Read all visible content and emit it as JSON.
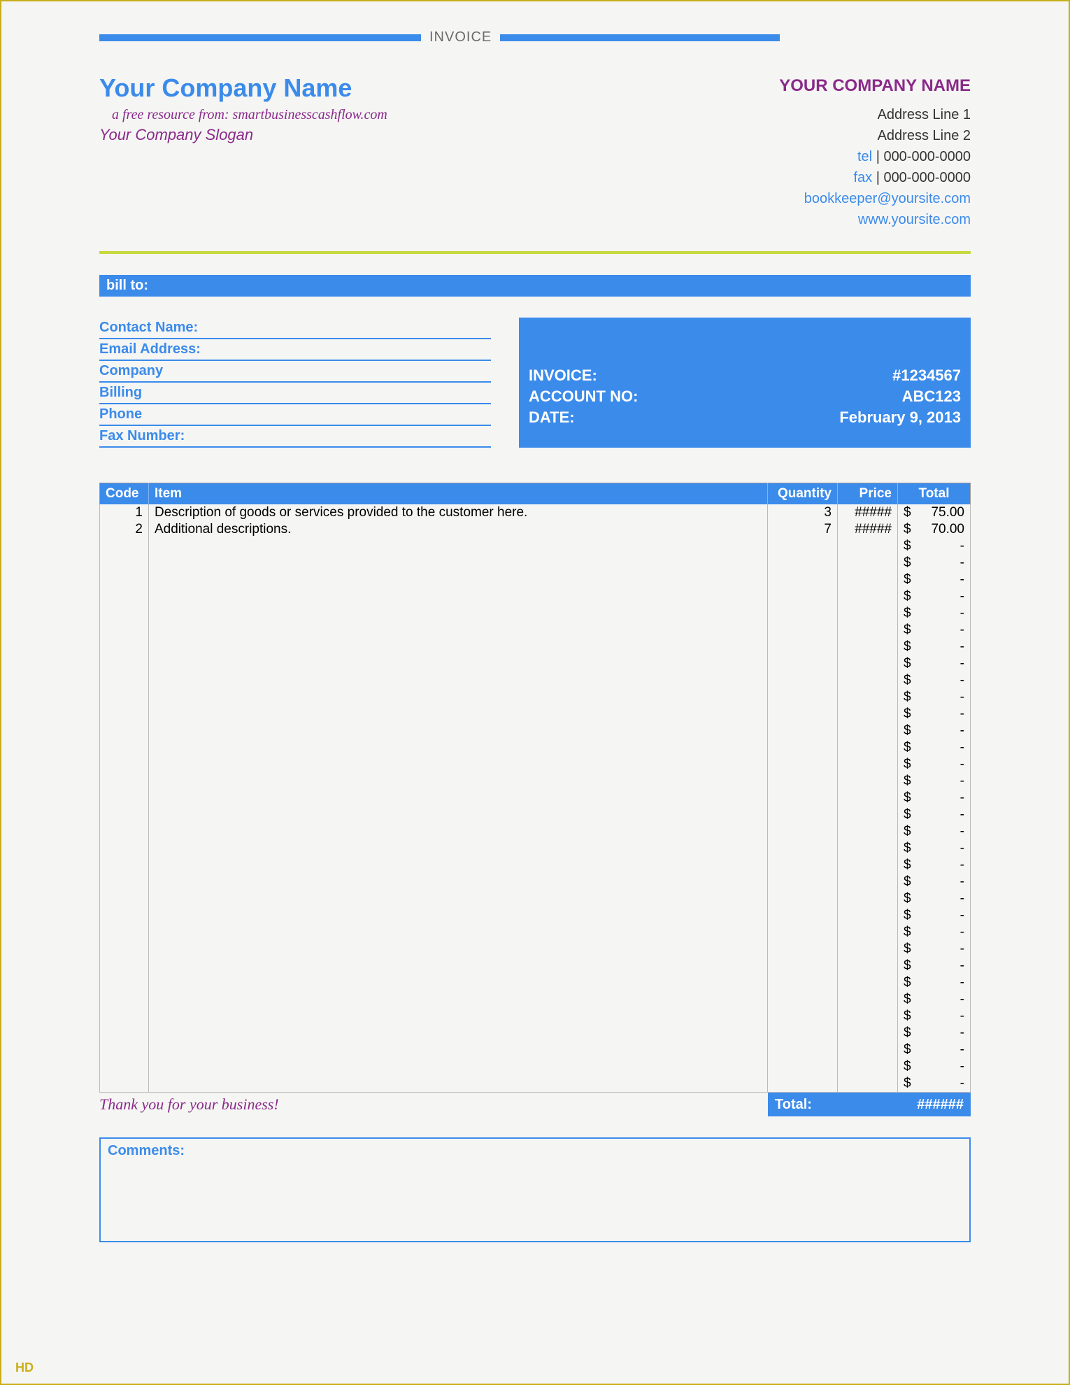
{
  "colors": {
    "blue": "#3b8bea",
    "purple": "#8a2a8a",
    "lime": "#c7d93e",
    "border": "#c9af1a",
    "bg": "#f5f5f4"
  },
  "top": {
    "label": "INVOICE"
  },
  "header": {
    "company": "Your Company Name",
    "resource": "a free resource from: smartbusinesscashflow.com",
    "slogan": "Your Company Slogan",
    "right": {
      "name": "YOUR COMPANY NAME",
      "addr1": "Address Line 1",
      "addr2": "Address Line 2",
      "tel_label": "tel",
      "tel": "| 000-000-0000",
      "fax_label": "fax",
      "fax": "| 000-000-0000",
      "email": "bookkeeper@yoursite.com",
      "web": "www.yoursite.com"
    }
  },
  "billto_label": "bill to:",
  "bill_fields": [
    "Contact Name:",
    "Email Address:",
    "Company",
    "Billing",
    "Phone",
    "Fax Number:"
  ],
  "invoice_meta": {
    "invoice_label": "INVOICE:",
    "invoice_no": "#1234567",
    "account_label": "ACCOUNT NO:",
    "account_no": "ABC123",
    "date_label": "DATE:",
    "date": "February 9, 2013"
  },
  "table": {
    "headers": {
      "code": "Code",
      "item": "Item",
      "qty": "Quantity",
      "price": "Price",
      "total": "Total"
    },
    "rows": [
      {
        "code": "1",
        "item": "Description of goods or services provided to the customer here.",
        "qty": "3",
        "price": "#####",
        "cur": "$",
        "amt": "75.00"
      },
      {
        "code": "2",
        "item": "Additional descriptions.",
        "qty": "7",
        "price": "#####",
        "cur": "$",
        "amt": "70.00"
      },
      {
        "code": "",
        "item": "",
        "qty": "",
        "price": "",
        "cur": "$",
        "amt": "-"
      },
      {
        "code": "",
        "item": "",
        "qty": "",
        "price": "",
        "cur": "$",
        "amt": "-"
      },
      {
        "code": "",
        "item": "",
        "qty": "",
        "price": "",
        "cur": "$",
        "amt": "-"
      },
      {
        "code": "",
        "item": "",
        "qty": "",
        "price": "",
        "cur": "$",
        "amt": "-"
      },
      {
        "code": "",
        "item": "",
        "qty": "",
        "price": "",
        "cur": "$",
        "amt": "-"
      },
      {
        "code": "",
        "item": "",
        "qty": "",
        "price": "",
        "cur": "$",
        "amt": "-"
      },
      {
        "code": "",
        "item": "",
        "qty": "",
        "price": "",
        "cur": "$",
        "amt": "-"
      },
      {
        "code": "",
        "item": "",
        "qty": "",
        "price": "",
        "cur": "$",
        "amt": "-"
      },
      {
        "code": "",
        "item": "",
        "qty": "",
        "price": "",
        "cur": "$",
        "amt": "-"
      },
      {
        "code": "",
        "item": "",
        "qty": "",
        "price": "",
        "cur": "$",
        "amt": "-"
      },
      {
        "code": "",
        "item": "",
        "qty": "",
        "price": "",
        "cur": "$",
        "amt": "-"
      },
      {
        "code": "",
        "item": "",
        "qty": "",
        "price": "",
        "cur": "$",
        "amt": "-"
      },
      {
        "code": "",
        "item": "",
        "qty": "",
        "price": "",
        "cur": "$",
        "amt": "-"
      },
      {
        "code": "",
        "item": "",
        "qty": "",
        "price": "",
        "cur": "$",
        "amt": "-"
      },
      {
        "code": "",
        "item": "",
        "qty": "",
        "price": "",
        "cur": "$",
        "amt": "-"
      },
      {
        "code": "",
        "item": "",
        "qty": "",
        "price": "",
        "cur": "$",
        "amt": "-"
      },
      {
        "code": "",
        "item": "",
        "qty": "",
        "price": "",
        "cur": "$",
        "amt": "-"
      },
      {
        "code": "",
        "item": "",
        "qty": "",
        "price": "",
        "cur": "$",
        "amt": "-"
      },
      {
        "code": "",
        "item": "",
        "qty": "",
        "price": "",
        "cur": "$",
        "amt": "-"
      },
      {
        "code": "",
        "item": "",
        "qty": "",
        "price": "",
        "cur": "$",
        "amt": "-"
      },
      {
        "code": "",
        "item": "",
        "qty": "",
        "price": "",
        "cur": "$",
        "amt": "-"
      },
      {
        "code": "",
        "item": "",
        "qty": "",
        "price": "",
        "cur": "$",
        "amt": "-"
      },
      {
        "code": "",
        "item": "",
        "qty": "",
        "price": "",
        "cur": "$",
        "amt": "-"
      },
      {
        "code": "",
        "item": "",
        "qty": "",
        "price": "",
        "cur": "$",
        "amt": "-"
      },
      {
        "code": "",
        "item": "",
        "qty": "",
        "price": "",
        "cur": "$",
        "amt": "-"
      },
      {
        "code": "",
        "item": "",
        "qty": "",
        "price": "",
        "cur": "$",
        "amt": "-"
      },
      {
        "code": "",
        "item": "",
        "qty": "",
        "price": "",
        "cur": "$",
        "amt": "-"
      },
      {
        "code": "",
        "item": "",
        "qty": "",
        "price": "",
        "cur": "$",
        "amt": "-"
      },
      {
        "code": "",
        "item": "",
        "qty": "",
        "price": "",
        "cur": "$",
        "amt": "-"
      },
      {
        "code": "",
        "item": "",
        "qty": "",
        "price": "",
        "cur": "$",
        "amt": "-"
      },
      {
        "code": "",
        "item": "",
        "qty": "",
        "price": "",
        "cur": "$",
        "amt": "-"
      },
      {
        "code": "",
        "item": "",
        "qty": "",
        "price": "",
        "cur": "$",
        "amt": "-"
      },
      {
        "code": "",
        "item": "",
        "qty": "",
        "price": "",
        "cur": "$",
        "amt": "-"
      }
    ]
  },
  "thanks": "Thank you for your business!",
  "total": {
    "label": "Total:",
    "value": "######"
  },
  "comments_label": "Comments:",
  "badge": "HD"
}
